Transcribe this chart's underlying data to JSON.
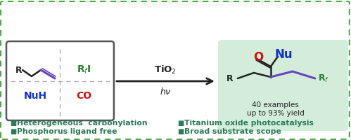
{
  "bg_color": "#ffffff",
  "border_color": "#4aaa44",
  "left_box_bg": "#ffffff",
  "left_box_border": "#555555",
  "right_box_bg": "#d4edda",
  "arrow_color": "#222222",
  "tio2_label": "TiO$_2$",
  "hv_label": "$h\\nu$",
  "rf_label_color": "#2a8030",
  "nuh_label_color": "#1133cc",
  "co_label_color": "#cc1111",
  "bullet_color": "#2a7a55",
  "bullets": [
    "Heterogeneous  carbonylation",
    "Phosphorus ligand free",
    "Titanium oxide photocatalysis",
    "Broad substrate scope"
  ],
  "bullet_fontsize": 7.8,
  "alkene_color": "#6644bb",
  "product_chain_color": "#6644bb",
  "o_color": "#cc1111",
  "nu_color": "#1133cc"
}
